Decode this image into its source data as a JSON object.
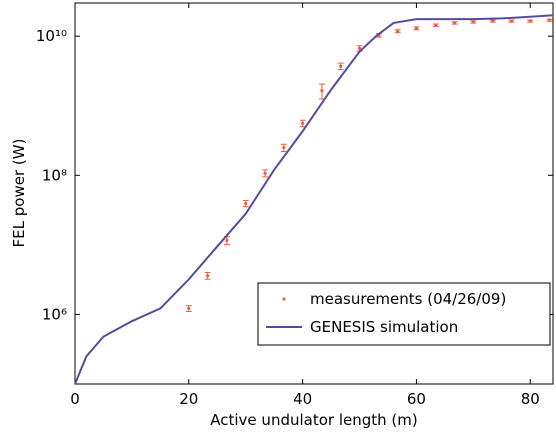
{
  "chart_data": {
    "type": "line",
    "xlabel": "Active undulator length (m)",
    "ylabel": "FEL power (W)",
    "xlim": [
      0,
      84
    ],
    "ylim": [
      100000,
      30000000000
    ],
    "log_y": true,
    "xticks": [
      0,
      20,
      40,
      60,
      80
    ],
    "yticks": [
      {
        "value": 1000000,
        "label": "10⁶"
      },
      {
        "value": 100000000,
        "label": "10⁸"
      },
      {
        "value": 10000000000,
        "label": "10¹⁰"
      }
    ],
    "legend": "lower right",
    "series": [
      {
        "name": "measurements (04/26/09)",
        "type": "scatter",
        "color": "#e8643c",
        "x": [
          20,
          23.3,
          26.7,
          30,
          33.4,
          36.7,
          40,
          43.4,
          46.7,
          50,
          53.4,
          56.7,
          60,
          63.4,
          66.7,
          70,
          73.4,
          76.7,
          80,
          83.4
        ],
        "values": [
          1220000,
          3600000,
          11600000,
          39500000,
          107000000,
          250000000,
          560000000,
          1650000000,
          3700000000,
          6700000000,
          10300000000,
          11800000000,
          13000000000,
          14400000000,
          15500000000,
          16000000000,
          16500000000,
          16500000000,
          16500000000,
          17000000000
        ],
        "errors": [
          120000,
          400000,
          1500000,
          4000000,
          12000000,
          30000000,
          60000000,
          400000000,
          400000000,
          600000000,
          600000000,
          600000000,
          600000000,
          600000000,
          600000000,
          600000000,
          600000000,
          600000000,
          600000000,
          600000000
        ]
      },
      {
        "name": "GENESIS simulation",
        "type": "line",
        "color": "#5b4a9c",
        "x": [
          0,
          2,
          5,
          10,
          15,
          20,
          25,
          30,
          35,
          40,
          45,
          50,
          53,
          56,
          60,
          65,
          70,
          75,
          80,
          84
        ],
        "values": [
          100000,
          250000,
          480000,
          800000,
          1220000,
          3200000,
          9500000,
          28000000,
          120000000,
          430000000,
          1700000000,
          6000000000,
          10200000000,
          15500000000,
          17600000000,
          17600000000,
          17600000000,
          18000000000,
          19000000000,
          20000000000
        ]
      }
    ]
  }
}
